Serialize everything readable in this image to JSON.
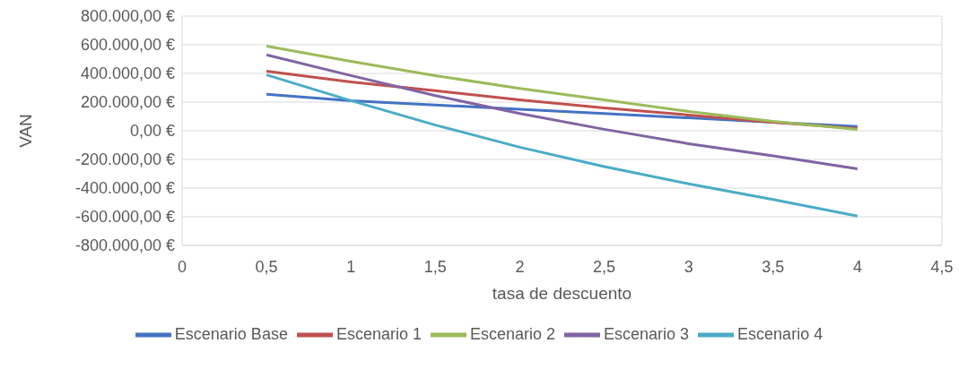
{
  "chart_data": {
    "type": "line",
    "xlabel": "tasa de descuento",
    "ylabel": "VAN",
    "x": [
      0.5,
      1,
      1.5,
      2,
      2.5,
      3,
      3.5,
      4
    ],
    "series": [
      {
        "name": "Escenario Base",
        "color": "#4472c4",
        "values": [
          255000,
          210000,
          180000,
          150000,
          120000,
          90000,
          60000,
          30000
        ]
      },
      {
        "name": "Escenario 1",
        "color": "#c0504d",
        "values": [
          415000,
          340000,
          280000,
          215000,
          160000,
          110000,
          60000,
          15000
        ]
      },
      {
        "name": "Escenario 2",
        "color": "#9bbb59",
        "values": [
          590000,
          485000,
          385000,
          295000,
          215000,
          135000,
          65000,
          10000
        ]
      },
      {
        "name": "Escenario 3",
        "color": "#8064a2",
        "values": [
          530000,
          385000,
          245000,
          120000,
          10000,
          -90000,
          -175000,
          -265000
        ]
      },
      {
        "name": "Escenario 4",
        "color": "#4bacc6",
        "values": [
          390000,
          210000,
          40000,
          -115000,
          -250000,
          -370000,
          -480000,
          -595000
        ]
      }
    ],
    "xlim": [
      0,
      4.5
    ],
    "xticks": [
      0,
      {
        "value": 0.5,
        "label": "0,5"
      },
      1,
      {
        "value": 1.5,
        "label": "1,5"
      },
      2,
      {
        "value": 2.5,
        "label": "2,5"
      },
      3,
      {
        "value": 3.5,
        "label": "3,5"
      },
      4,
      {
        "value": 4.5,
        "label": "4,5"
      }
    ],
    "ylim": [
      -800000,
      800000
    ],
    "yticks": [
      {
        "value": -800000,
        "label": "-800.000,00 €"
      },
      {
        "value": -600000,
        "label": "-600.000,00 €"
      },
      {
        "value": -400000,
        "label": "-400.000,00 €"
      },
      {
        "value": -200000,
        "label": "-200.000,00 €"
      },
      {
        "value": 0,
        "label": "0,00 €"
      },
      {
        "value": 200000,
        "label": "200.000,00 €"
      },
      {
        "value": 400000,
        "label": "400.000,00 €"
      },
      {
        "value": 600000,
        "label": "600.000,00 €"
      },
      {
        "value": 800000,
        "label": "800.000,00 €"
      }
    ],
    "grid": true,
    "legend": "bottom",
    "marker": "none",
    "line_style": "solid"
  }
}
